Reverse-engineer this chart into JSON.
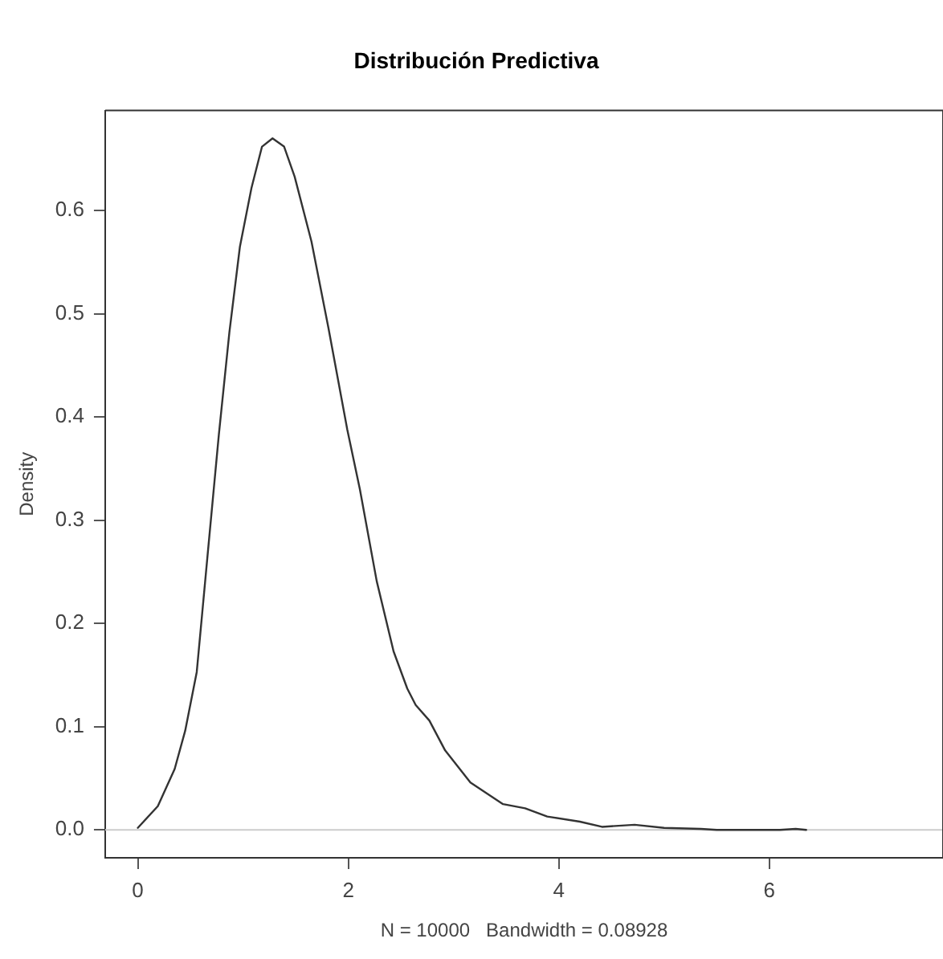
{
  "chart_data": {
    "type": "line",
    "title": "Distribución Predictiva",
    "xlabel": "N = 10000   Bandwidth = 0.08928",
    "ylabel": "Density",
    "x": [
      0,
      0.19,
      0.35,
      0.45,
      0.56,
      0.66,
      0.77,
      0.87,
      0.97,
      1.08,
      1.18,
      1.28,
      1.39,
      1.49,
      1.65,
      1.81,
      1.99,
      2.11,
      2.27,
      2.43,
      2.56,
      2.64,
      2.77,
      2.92,
      3.16,
      3.47,
      3.68,
      3.89,
      4.2,
      4.41,
      4.72,
      5.0,
      5.35,
      5.5,
      6.1,
      6.25,
      6.35
    ],
    "series": [
      {
        "color": "#333333",
        "values": [
          0.002,
          0.023,
          0.059,
          0.096,
          0.153,
          0.263,
          0.383,
          0.482,
          0.565,
          0.622,
          0.662,
          0.67,
          0.662,
          0.633,
          0.57,
          0.487,
          0.388,
          0.33,
          0.241,
          0.173,
          0.137,
          0.121,
          0.106,
          0.077,
          0.046,
          0.025,
          0.021,
          0.013,
          0.008,
          0.003,
          0.005,
          0.002,
          0.001,
          0,
          0,
          0.001,
          0
        ]
      }
    ],
    "xlim": [
      -0.31,
      7.65
    ],
    "xticks": [
      0,
      2,
      4,
      6
    ],
    "ylim": [
      -0.027,
      0.697
    ],
    "yticks": [
      {
        "value": 0,
        "label": "0.0"
      },
      {
        "value": 0.1,
        "label": "0.1"
      },
      {
        "value": 0.2,
        "label": "0.2"
      },
      {
        "value": 0.3,
        "label": "0.3"
      },
      {
        "value": 0.4,
        "label": "0.4"
      },
      {
        "value": 0.5,
        "label": "0.5"
      },
      {
        "value": 0.6,
        "label": "0.6"
      }
    ],
    "ref_lines": [
      {
        "axis": "y",
        "value": 0,
        "color": "#cccccc"
      }
    ],
    "grid": false,
    "legend": false,
    "marker": "none",
    "line_style": "solid"
  }
}
